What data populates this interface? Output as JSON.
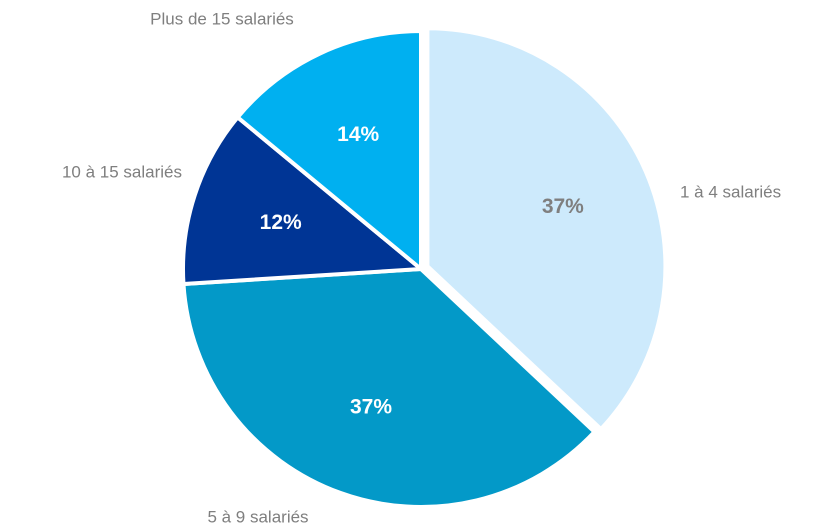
{
  "chart_data": {
    "type": "pie",
    "categories": [
      "1 à 4 salariés",
      "5 à 9 salariés",
      "10 à 15 salariés",
      "Plus de 15 salariés"
    ],
    "values": [
      37,
      37,
      12,
      14
    ],
    "value_labels": [
      "37%",
      "37%",
      "12%",
      "14%"
    ],
    "colors": [
      "#cdeafc",
      "#0399c8",
      "#003595",
      "#00b0f0"
    ]
  }
}
